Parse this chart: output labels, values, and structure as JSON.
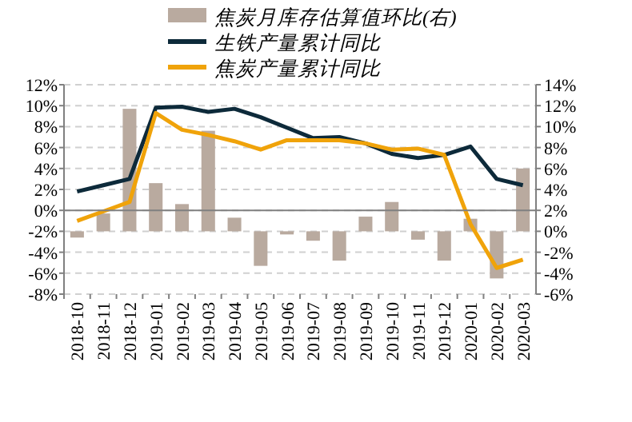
{
  "chart_data": {
    "type": "bar",
    "categories": [
      "2018-10",
      "2018-11",
      "2018-12",
      "2019-01",
      "2019-02",
      "2019-03",
      "2019-04",
      "2019-05",
      "2019-06",
      "2019-07",
      "2019-08",
      "2019-09",
      "2019-10",
      "2019-11",
      "2019-12",
      "2020-01",
      "2020-02",
      "2020-03"
    ],
    "series": [
      {
        "name": "焦炭月库存估算值环比(右)",
        "axis": "y2",
        "color": "#b9aa9f",
        "values": [
          -0.6,
          1.7,
          11.7,
          4.6,
          2.6,
          9.6,
          1.3,
          -3.3,
          -0.3,
          -0.9,
          -2.8,
          1.4,
          2.8,
          -0.8,
          -2.8,
          1.2,
          -4.5,
          6.0
        ]
      },
      {
        "name": "生铁产量累计同比",
        "type": "line",
        "color": "#0d2a3a",
        "values": [
          1.8,
          2.4,
          3.0,
          9.8,
          9.9,
          9.4,
          9.7,
          8.9,
          7.9,
          6.9,
          7.0,
          6.4,
          5.4,
          5.0,
          5.3,
          6.1,
          3.0,
          2.4
        ]
      },
      {
        "name": "焦炭产量累计同比",
        "type": "line",
        "color": "#f0a30a",
        "values": [
          -1.0,
          -0.1,
          0.8,
          9.3,
          7.7,
          7.2,
          6.6,
          5.8,
          6.7,
          6.7,
          6.7,
          6.4,
          5.8,
          5.9,
          5.3,
          -1.3,
          -5.5,
          -4.7
        ]
      }
    ],
    "ylim": [
      -8,
      12
    ],
    "yticks": [
      {
        "value": -8,
        "label": "-8%"
      },
      {
        "value": -6,
        "label": "-6%"
      },
      {
        "value": -4,
        "label": "-4%"
      },
      {
        "value": -2,
        "label": "-2%"
      },
      {
        "value": 0,
        "label": "0%"
      },
      {
        "value": 2,
        "label": "2%"
      },
      {
        "value": 4,
        "label": "4%"
      },
      {
        "value": 6,
        "label": "6%"
      },
      {
        "value": 8,
        "label": "8%"
      },
      {
        "value": 10,
        "label": "10%"
      },
      {
        "value": 12,
        "label": "12%"
      }
    ],
    "y2lim": [
      -6,
      14
    ],
    "y2ticks": [
      {
        "value": -6,
        "label": "-6%"
      },
      {
        "value": -4,
        "label": "-4%"
      },
      {
        "value": -2,
        "label": "-2%"
      },
      {
        "value": 0,
        "label": "0%"
      },
      {
        "value": 2,
        "label": "2%"
      },
      {
        "value": 4,
        "label": "4%"
      },
      {
        "value": 6,
        "label": "6%"
      },
      {
        "value": 8,
        "label": "8%"
      },
      {
        "value": 10,
        "label": "10%"
      },
      {
        "value": 12,
        "label": "12%"
      },
      {
        "value": 14,
        "label": "14%"
      }
    ],
    "ref_lines": [
      {
        "axis": "y",
        "value": 0,
        "color": "#808080"
      }
    ],
    "grid": "y",
    "legend": "top",
    "marker": "none",
    "line_style": "solid"
  }
}
